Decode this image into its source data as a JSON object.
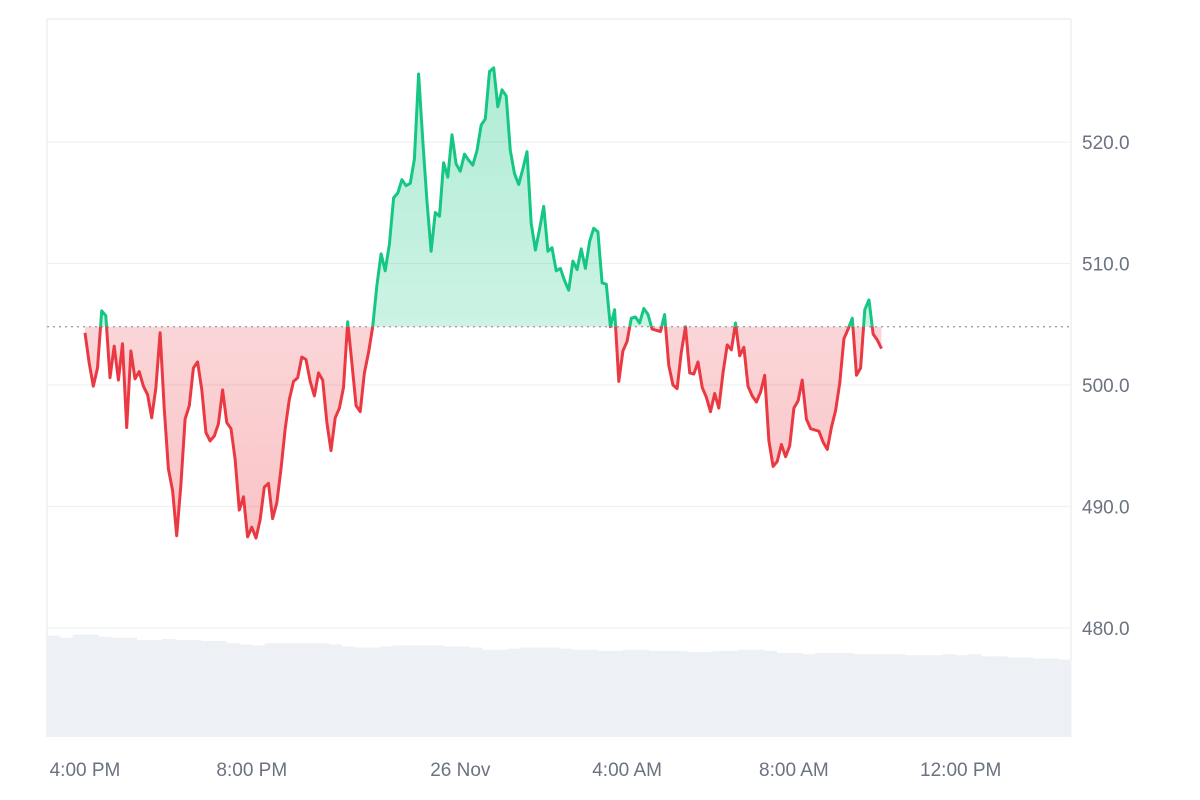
{
  "chart_data": {
    "type": "area",
    "baseline": 504.8,
    "ylim": [
      471,
      530
    ],
    "y_ticks": [
      480.0,
      490.0,
      500.0,
      510.0,
      520.0
    ],
    "x_ticks": [
      {
        "label": "4:00 PM",
        "t": 15.0
      },
      {
        "label": "8:00 PM",
        "t": 19.0
      },
      {
        "label": "26 Nov",
        "t": 24.0
      },
      {
        "label": "4:00 AM",
        "t": 28.0
      },
      {
        "label": "8:00 AM",
        "t": 32.0
      },
      {
        "label": "12:00 PM",
        "t": 36.0
      }
    ],
    "series": [
      {
        "values": [
          [
            15.0,
            504.3
          ],
          [
            15.1,
            501.8
          ],
          [
            15.2,
            499.9
          ],
          [
            15.3,
            501.4
          ],
          [
            15.4,
            506.1
          ],
          [
            15.5,
            505.7
          ],
          [
            15.6,
            500.6
          ],
          [
            15.7,
            503.2
          ],
          [
            15.8,
            500.4
          ],
          [
            15.9,
            503.4
          ],
          [
            16.0,
            496.5
          ],
          [
            16.1,
            502.8
          ],
          [
            16.2,
            500.5
          ],
          [
            16.3,
            501.1
          ],
          [
            16.4,
            499.9
          ],
          [
            16.5,
            499.2
          ],
          [
            16.6,
            497.3
          ],
          [
            16.7,
            499.8
          ],
          [
            16.8,
            504.3
          ],
          [
            16.9,
            498.1
          ],
          [
            17.0,
            493.1
          ],
          [
            17.1,
            491.3
          ],
          [
            17.2,
            487.6
          ],
          [
            17.3,
            491.8
          ],
          [
            17.4,
            497.2
          ],
          [
            17.5,
            498.3
          ],
          [
            17.6,
            501.4
          ],
          [
            17.7,
            501.9
          ],
          [
            17.8,
            499.6
          ],
          [
            17.9,
            496.1
          ],
          [
            18.0,
            495.4
          ],
          [
            18.1,
            495.8
          ],
          [
            18.2,
            496.8
          ],
          [
            18.3,
            499.6
          ],
          [
            18.4,
            496.9
          ],
          [
            18.5,
            496.4
          ],
          [
            18.6,
            493.9
          ],
          [
            18.7,
            489.7
          ],
          [
            18.8,
            490.8
          ],
          [
            18.9,
            487.5
          ],
          [
            19.0,
            488.3
          ],
          [
            19.1,
            487.4
          ],
          [
            19.2,
            488.9
          ],
          [
            19.3,
            491.6
          ],
          [
            19.4,
            491.9
          ],
          [
            19.5,
            489.0
          ],
          [
            19.6,
            490.3
          ],
          [
            19.7,
            493.1
          ],
          [
            19.8,
            496.4
          ],
          [
            19.9,
            498.8
          ],
          [
            20.0,
            500.3
          ],
          [
            20.1,
            500.6
          ],
          [
            20.2,
            502.3
          ],
          [
            20.3,
            502.1
          ],
          [
            20.4,
            500.3
          ],
          [
            20.5,
            499.1
          ],
          [
            20.6,
            501.0
          ],
          [
            20.7,
            500.4
          ],
          [
            20.8,
            496.9
          ],
          [
            20.9,
            494.6
          ],
          [
            21.0,
            497.3
          ],
          [
            21.1,
            498.1
          ],
          [
            21.2,
            499.8
          ],
          [
            21.3,
            505.2
          ],
          [
            21.4,
            501.8
          ],
          [
            21.5,
            498.3
          ],
          [
            21.6,
            497.8
          ],
          [
            21.7,
            501.0
          ],
          [
            21.8,
            502.7
          ],
          [
            21.9,
            504.8
          ],
          [
            22.0,
            508.2
          ],
          [
            22.1,
            510.8
          ],
          [
            22.2,
            509.4
          ],
          [
            22.3,
            511.6
          ],
          [
            22.4,
            515.4
          ],
          [
            22.5,
            515.8
          ],
          [
            22.6,
            516.9
          ],
          [
            22.7,
            516.4
          ],
          [
            22.8,
            516.6
          ],
          [
            22.9,
            518.6
          ],
          [
            23.0,
            525.6
          ],
          [
            23.1,
            520.1
          ],
          [
            23.2,
            515.2
          ],
          [
            23.3,
            511.0
          ],
          [
            23.4,
            514.2
          ],
          [
            23.5,
            513.9
          ],
          [
            23.6,
            518.3
          ],
          [
            23.7,
            517.1
          ],
          [
            23.8,
            520.6
          ],
          [
            23.9,
            518.2
          ],
          [
            24.0,
            517.6
          ],
          [
            24.1,
            519.0
          ],
          [
            24.2,
            518.5
          ],
          [
            24.3,
            518.1
          ],
          [
            24.4,
            519.3
          ],
          [
            24.5,
            521.4
          ],
          [
            24.6,
            521.9
          ],
          [
            24.7,
            525.8
          ],
          [
            24.8,
            526.1
          ],
          [
            24.9,
            522.9
          ],
          [
            25.0,
            524.3
          ],
          [
            25.1,
            523.8
          ],
          [
            25.2,
            519.3
          ],
          [
            25.3,
            517.4
          ],
          [
            25.4,
            516.5
          ],
          [
            25.5,
            517.8
          ],
          [
            25.6,
            519.2
          ],
          [
            25.7,
            513.3
          ],
          [
            25.8,
            511.1
          ],
          [
            25.9,
            512.8
          ],
          [
            26.0,
            514.7
          ],
          [
            26.1,
            511.0
          ],
          [
            26.2,
            511.3
          ],
          [
            26.3,
            509.4
          ],
          [
            26.4,
            509.6
          ],
          [
            26.5,
            508.6
          ],
          [
            26.6,
            507.8
          ],
          [
            26.7,
            510.2
          ],
          [
            26.8,
            509.5
          ],
          [
            26.9,
            511.2
          ],
          [
            27.0,
            509.6
          ],
          [
            27.1,
            511.8
          ],
          [
            27.2,
            512.9
          ],
          [
            27.3,
            512.6
          ],
          [
            27.4,
            508.4
          ],
          [
            27.5,
            508.3
          ],
          [
            27.6,
            504.8
          ],
          [
            27.7,
            506.2
          ],
          [
            27.8,
            500.3
          ],
          [
            27.9,
            502.8
          ],
          [
            28.0,
            503.6
          ],
          [
            28.1,
            505.5
          ],
          [
            28.2,
            505.6
          ],
          [
            28.3,
            505.1
          ],
          [
            28.4,
            506.3
          ],
          [
            28.5,
            505.8
          ],
          [
            28.6,
            504.6
          ],
          [
            28.7,
            504.5
          ],
          [
            28.8,
            504.4
          ],
          [
            28.9,
            505.8
          ],
          [
            29.0,
            501.6
          ],
          [
            29.1,
            500.0
          ],
          [
            29.2,
            499.7
          ],
          [
            29.3,
            502.7
          ],
          [
            29.4,
            504.8
          ],
          [
            29.5,
            501.0
          ],
          [
            29.6,
            500.9
          ],
          [
            29.7,
            501.9
          ],
          [
            29.8,
            499.8
          ],
          [
            29.9,
            499.0
          ],
          [
            30.0,
            497.8
          ],
          [
            30.1,
            499.3
          ],
          [
            30.2,
            498.1
          ],
          [
            30.3,
            501.0
          ],
          [
            30.4,
            503.3
          ],
          [
            30.5,
            502.9
          ],
          [
            30.6,
            505.1
          ],
          [
            30.7,
            502.4
          ],
          [
            30.8,
            503.1
          ],
          [
            30.9,
            499.9
          ],
          [
            31.0,
            499.1
          ],
          [
            31.1,
            498.6
          ],
          [
            31.2,
            499.4
          ],
          [
            31.3,
            500.8
          ],
          [
            31.4,
            495.4
          ],
          [
            31.5,
            493.3
          ],
          [
            31.6,
            493.7
          ],
          [
            31.7,
            495.1
          ],
          [
            31.8,
            494.1
          ],
          [
            31.9,
            495.0
          ],
          [
            32.0,
            498.1
          ],
          [
            32.1,
            498.7
          ],
          [
            32.2,
            500.4
          ],
          [
            32.3,
            497.2
          ],
          [
            32.4,
            496.4
          ],
          [
            32.5,
            496.3
          ],
          [
            32.6,
            496.2
          ],
          [
            32.7,
            495.3
          ],
          [
            32.8,
            494.7
          ],
          [
            32.9,
            496.5
          ],
          [
            33.0,
            497.9
          ],
          [
            33.1,
            500.2
          ],
          [
            33.2,
            503.8
          ],
          [
            33.3,
            504.6
          ],
          [
            33.4,
            505.5
          ],
          [
            33.5,
            500.8
          ],
          [
            33.6,
            501.4
          ],
          [
            33.7,
            506.2
          ],
          [
            33.8,
            507.0
          ],
          [
            33.9,
            504.2
          ],
          [
            34.0,
            503.7
          ],
          [
            34.1,
            503.0
          ]
        ]
      }
    ],
    "volume": [
      0.93,
      0.91,
      0.94,
      0.94,
      0.92,
      0.91,
      0.91,
      0.89,
      0.89,
      0.9,
      0.89,
      0.89,
      0.88,
      0.88,
      0.86,
      0.85,
      0.84,
      0.86,
      0.86,
      0.86,
      0.86,
      0.86,
      0.85,
      0.83,
      0.82,
      0.82,
      0.83,
      0.84,
      0.84,
      0.84,
      0.84,
      0.83,
      0.83,
      0.82,
      0.8,
      0.8,
      0.81,
      0.82,
      0.82,
      0.82,
      0.81,
      0.8,
      0.8,
      0.79,
      0.79,
      0.8,
      0.8,
      0.79,
      0.79,
      0.79,
      0.78,
      0.78,
      0.79,
      0.79,
      0.8,
      0.8,
      0.79,
      0.77,
      0.77,
      0.76,
      0.77,
      0.77,
      0.77,
      0.76,
      0.76,
      0.76,
      0.76,
      0.75,
      0.75,
      0.75,
      0.76,
      0.75,
      0.76,
      0.74,
      0.74,
      0.73,
      0.73,
      0.72,
      0.72,
      0.71
    ]
  }
}
